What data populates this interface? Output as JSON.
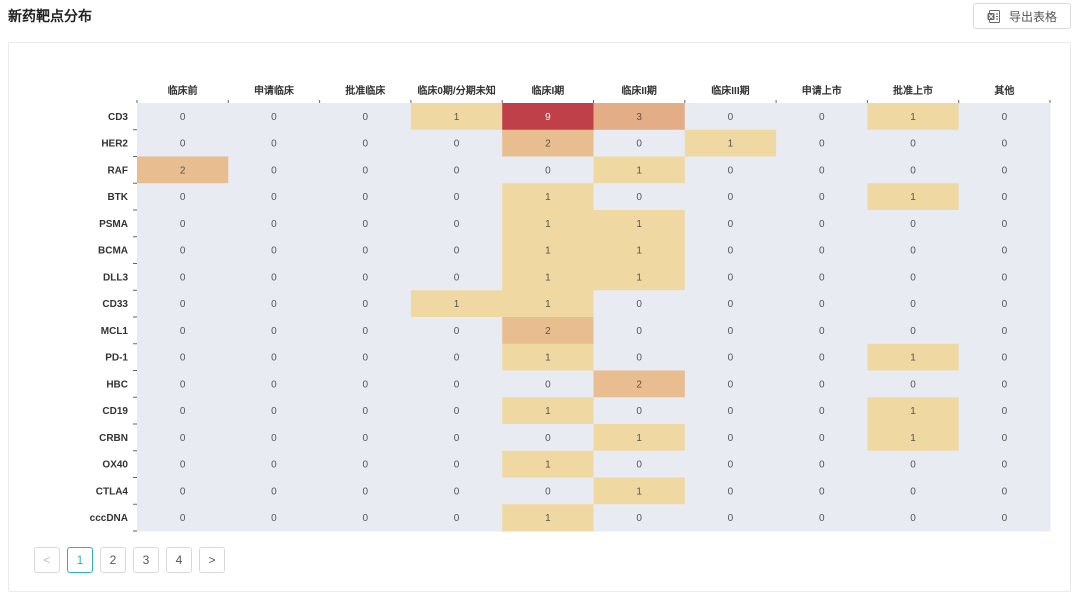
{
  "header": {
    "title": "新药靶点分布",
    "export_label": "导出表格"
  },
  "chart_data": {
    "type": "heatmap",
    "columns": [
      "临床前",
      "申请临床",
      "批准临床",
      "临床0期/分期未知",
      "临床I期",
      "临床II期",
      "临床III期",
      "申请上市",
      "批准上市",
      "其他"
    ],
    "rows": [
      "CD3",
      "HER2",
      "RAF",
      "BTK",
      "PSMA",
      "BCMA",
      "DLL3",
      "CD33",
      "MCL1",
      "PD-1",
      "HBC",
      "CD19",
      "CRBN",
      "OX40",
      "CTLA4",
      "cccDNA"
    ],
    "values": [
      [
        0,
        0,
        0,
        1,
        9,
        3,
        0,
        0,
        1,
        0
      ],
      [
        0,
        0,
        0,
        0,
        2,
        0,
        1,
        0,
        0,
        0
      ],
      [
        2,
        0,
        0,
        0,
        0,
        1,
        0,
        0,
        0,
        0
      ],
      [
        0,
        0,
        0,
        0,
        1,
        0,
        0,
        0,
        1,
        0
      ],
      [
        0,
        0,
        0,
        0,
        1,
        1,
        0,
        0,
        0,
        0
      ],
      [
        0,
        0,
        0,
        0,
        1,
        1,
        0,
        0,
        0,
        0
      ],
      [
        0,
        0,
        0,
        0,
        1,
        1,
        0,
        0,
        0,
        0
      ],
      [
        0,
        0,
        0,
        1,
        1,
        0,
        0,
        0,
        0,
        0
      ],
      [
        0,
        0,
        0,
        0,
        2,
        0,
        0,
        0,
        0,
        0
      ],
      [
        0,
        0,
        0,
        0,
        1,
        0,
        0,
        0,
        1,
        0
      ],
      [
        0,
        0,
        0,
        0,
        0,
        2,
        0,
        0,
        0,
        0
      ],
      [
        0,
        0,
        0,
        0,
        1,
        0,
        0,
        0,
        1,
        0
      ],
      [
        0,
        0,
        0,
        0,
        0,
        1,
        0,
        0,
        1,
        0
      ],
      [
        0,
        0,
        0,
        0,
        1,
        0,
        0,
        0,
        0,
        0
      ],
      [
        0,
        0,
        0,
        0,
        0,
        1,
        0,
        0,
        0,
        0
      ],
      [
        0,
        0,
        0,
        0,
        1,
        0,
        0,
        0,
        0,
        0
      ]
    ],
    "colors": {
      "zero": "#e8ecf2",
      "one": "#f0d8a2",
      "two": "#e8bd8f",
      "three": "#e3ad88",
      "max": "#c0404a"
    },
    "grid": false,
    "legend": "none"
  },
  "pagination": {
    "prev": "<",
    "next": ">",
    "pages": [
      "1",
      "2",
      "3",
      "4"
    ],
    "current": "1"
  }
}
